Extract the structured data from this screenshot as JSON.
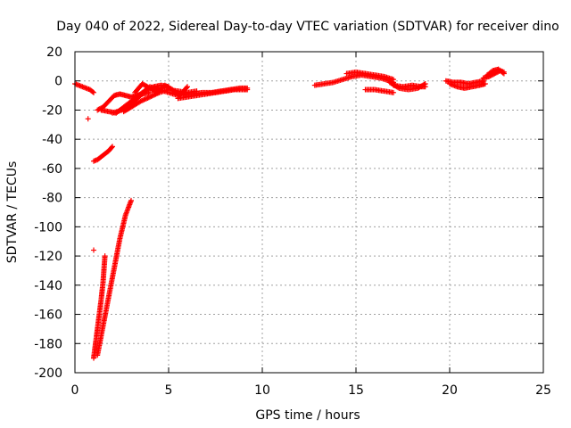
{
  "chart_data": {
    "type": "scatter",
    "title": "Day 040 of 2022, Sidereal Day-to-day VTEC variation (SDTVAR) for receiver dino",
    "xlabel": "GPS time / hours",
    "ylabel": "SDTVAR / TECUs",
    "xlim": [
      0,
      25
    ],
    "ylim": [
      -200,
      20
    ],
    "xticks": [
      0,
      5,
      10,
      15,
      20,
      25
    ],
    "yticks": [
      -200,
      -180,
      -160,
      -140,
      -120,
      -100,
      -80,
      -60,
      -40,
      -20,
      0,
      20
    ],
    "grid": true,
    "marker": "plus",
    "series": [
      {
        "name": "SDTVAR",
        "color": "#ff0000",
        "segments": [
          {
            "x": [
              0.0,
              0.2,
              0.4,
              0.6,
              0.8,
              1.0
            ],
            "y": [
              -2,
              -3,
              -4,
              -5,
              -6,
              -8
            ]
          },
          {
            "x": [
              0.7
            ],
            "y": [
              -26
            ]
          },
          {
            "x": [
              1.0,
              1.2,
              1.4,
              1.6,
              1.8,
              2.0
            ],
            "y": [
              -55,
              -54,
              -52,
              -50,
              -48,
              -45
            ]
          },
          {
            "x": [
              1.0,
              1.1,
              1.2,
              1.3,
              1.4,
              1.5,
              1.6
            ],
            "y": [
              -190,
              -180,
              -170,
              -160,
              -150,
              -138,
              -120
            ]
          },
          {
            "x": [
              1.0
            ],
            "y": [
              -116
            ]
          },
          {
            "x": [
              1.2,
              1.5,
              1.8,
              2.1,
              2.4,
              2.7,
              3.0
            ],
            "y": [
              -188,
              -168,
              -148,
              -128,
              -108,
              -92,
              -82
            ]
          },
          {
            "x": [
              1.2,
              1.5,
              1.8,
              2.1,
              2.4,
              2.7,
              3.0,
              3.3,
              3.6,
              4.0
            ],
            "y": [
              -20,
              -18,
              -14,
              -10,
              -9,
              -10,
              -11,
              -10,
              -9,
              -8
            ]
          },
          {
            "x": [
              1.4,
              1.8,
              2.2,
              2.6,
              3.0,
              3.4,
              3.8,
              4.2,
              4.6,
              5.0
            ],
            "y": [
              -20,
              -21,
              -22,
              -18,
              -14,
              -10,
              -6,
              -4,
              -3,
              -4
            ]
          },
          {
            "x": [
              2.0,
              2.5,
              3.0,
              3.5,
              4.0,
              4.5,
              5.0,
              5.5,
              6.0
            ],
            "y": [
              -22,
              -20,
              -16,
              -10,
              -4,
              -6,
              -8,
              -10,
              -9
            ]
          },
          {
            "x": [
              2.6,
              3.0,
              3.5,
              4.0,
              4.5,
              5.0,
              5.5,
              6.0,
              6.5
            ],
            "y": [
              -21,
              -18,
              -14,
              -11,
              -8,
              -6,
              -7,
              -8,
              -7
            ]
          },
          {
            "x": [
              3.2,
              3.6,
              4.0,
              4.4,
              4.8,
              5.2,
              5.6,
              6.0
            ],
            "y": [
              -8,
              -2,
              -5,
              -8,
              -3,
              -6,
              -10,
              -4
            ]
          },
          {
            "x": [
              5.5,
              6.0,
              6.5,
              7.0,
              7.5,
              8.0,
              8.5,
              9.0,
              9.2
            ],
            "y": [
              -12,
              -11,
              -10,
              -9,
              -8,
              -7,
              -6,
              -6,
              -6
            ]
          },
          {
            "x": [
              5.8,
              6.3,
              6.8,
              7.3,
              7.8,
              8.3,
              8.8,
              9.2
            ],
            "y": [
              -9,
              -9,
              -8,
              -8,
              -7,
              -6,
              -5,
              -5
            ]
          },
          {
            "x": [
              12.8,
              13.3,
              13.8,
              14.3,
              14.8,
              15.3,
              15.8,
              16.3,
              16.8,
              17.0
            ],
            "y": [
              -3,
              -2,
              -1,
              1,
              3,
              4,
              3,
              2,
              0,
              -1
            ]
          },
          {
            "x": [
              14.5,
              15.0,
              15.5,
              16.0,
              16.5,
              17.0
            ],
            "y": [
              5,
              6,
              5,
              4,
              3,
              1
            ]
          },
          {
            "x": [
              15.5,
              16.0,
              16.5,
              17.0
            ],
            "y": [
              -6,
              -6,
              -7,
              -8
            ]
          },
          {
            "x": [
              17.0,
              17.5,
              18.0,
              18.5,
              18.7
            ],
            "y": [
              -3,
              -4,
              -3,
              -4,
              -4
            ]
          },
          {
            "x": [
              16.8,
              17.3,
              17.8,
              18.3,
              18.7
            ],
            "y": [
              -1,
              -5,
              -6,
              -5,
              -2
            ]
          },
          {
            "x": [
              19.8,
              20.2,
              20.6,
              21.0,
              21.4,
              21.8
            ],
            "y": [
              0,
              -1,
              -1,
              -2,
              -1,
              0
            ]
          },
          {
            "x": [
              20.0,
              20.4,
              20.8,
              21.2,
              21.6,
              21.9
            ],
            "y": [
              -2,
              -4,
              -5,
              -4,
              -3,
              -2
            ]
          },
          {
            "x": [
              21.8,
              22.1,
              22.4,
              22.7,
              22.9
            ],
            "y": [
              2,
              3,
              5,
              7,
              6
            ]
          },
          {
            "x": [
              22.0,
              22.3,
              22.6,
              22.9
            ],
            "y": [
              4,
              7,
              8,
              5
            ]
          }
        ]
      }
    ]
  }
}
